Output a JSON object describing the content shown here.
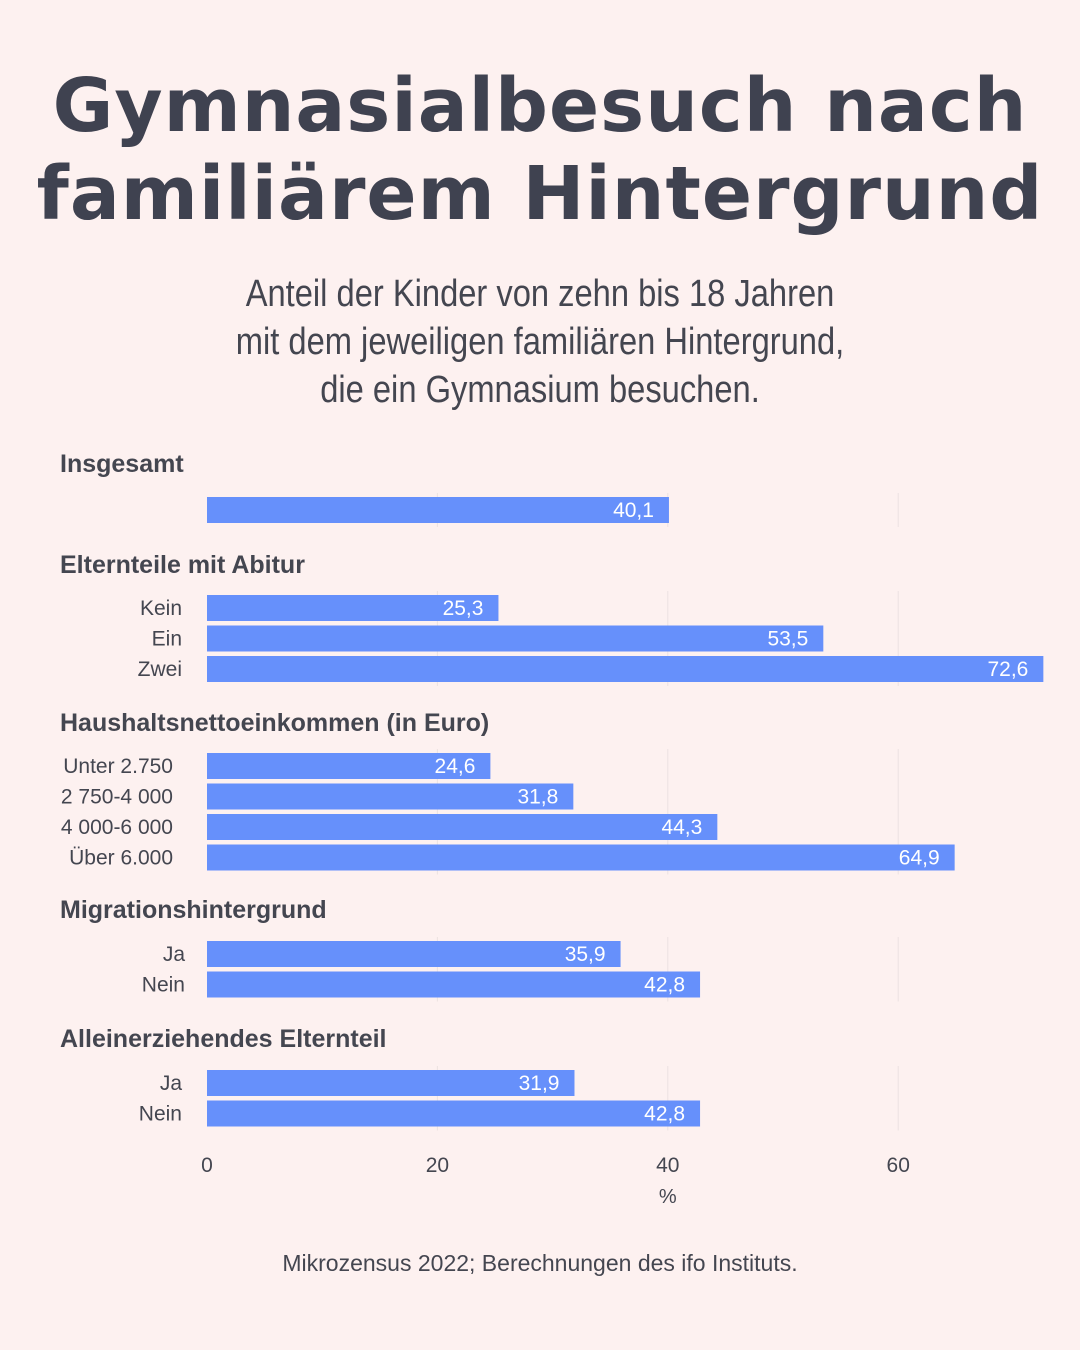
{
  "title": {
    "line1": "Gymnasialbesuch nach",
    "line2": "familiärem Hintergrund"
  },
  "subtitle": {
    "line1": "Anteil der Kinder von zehn bis 18  Jahren",
    "line2": "mit dem jeweiligen familiären Hintergrund,",
    "line3": "die ein Gymnasium besuchen."
  },
  "source": "Mikrozensus 2022;  Berechnungen des ifo Instituts.",
  "colors": {
    "bar": "#6690fb",
    "text": "#444650",
    "background": "#fdf1f0",
    "grid": "#ece2e1"
  },
  "chart_data": {
    "type": "bar",
    "orientation": "horizontal",
    "xlim": [
      0,
      73
    ],
    "xticks": [
      0,
      20,
      40,
      60
    ],
    "xticklabels": [
      "0",
      "20",
      "40",
      "60"
    ],
    "xlabel": "%",
    "grid": true,
    "groups": [
      {
        "name": "Insgesamt",
        "categories": [
          ""
        ],
        "values": [
          40.1
        ],
        "labels": [
          "40,1"
        ]
      },
      {
        "name": "Elternteile mit Abitur",
        "categories": [
          "Kein",
          "Ein",
          "Zwei"
        ],
        "values": [
          25.3,
          53.5,
          72.6
        ],
        "labels": [
          "25,3",
          "53,5",
          "72,6"
        ]
      },
      {
        "name": "Haushaltsnettoeinkommen (in Euro)",
        "categories": [
          "Unter 2.750",
          "2 750-4 000",
          "4 000-6 000",
          "Über 6.000"
        ],
        "values": [
          24.6,
          31.8,
          44.3,
          64.9
        ],
        "labels": [
          "24,6",
          "31,8",
          "44,3",
          "64,9"
        ]
      },
      {
        "name": "Migrationshintergrund",
        "categories": [
          "Ja",
          "Nein"
        ],
        "values": [
          35.9,
          42.8
        ],
        "labels": [
          "35,9",
          "42,8"
        ]
      },
      {
        "name": "Alleinerziehendes Elternteil",
        "categories": [
          "Ja",
          "Nein"
        ],
        "values": [
          31.9,
          42.8
        ],
        "labels": [
          "31,9",
          "42,8"
        ]
      }
    ]
  }
}
